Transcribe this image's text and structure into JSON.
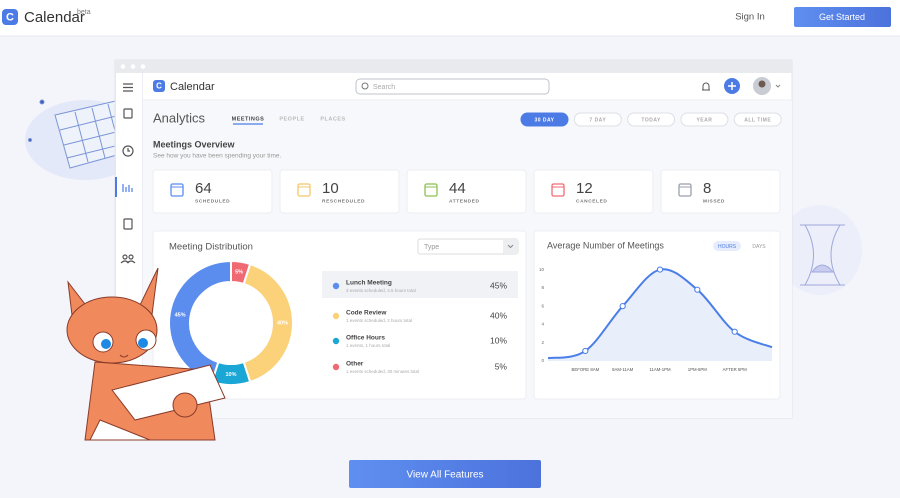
{
  "nav": {
    "logo": "Calendar",
    "badge": "beta",
    "sign_in": "Sign In",
    "cta": "Get Started"
  },
  "app": {
    "logo": "Calendar",
    "search": "Search",
    "title": "Analytics",
    "tabs": [
      "MEETINGS",
      "PEOPLE",
      "PLACES"
    ],
    "ranges": [
      "30 DAY",
      "7 DAY",
      "TODAY",
      "YEAR",
      "ALL TIME"
    ],
    "overview_title": "Meetings Overview",
    "overview_subtitle": "See how you have been spending your time.",
    "stats": [
      {
        "value": "64",
        "label": "SCHEDULED",
        "color": "#5b8def"
      },
      {
        "value": "10",
        "label": "RESCHEDULED",
        "color": "#f5c86a"
      },
      {
        "value": "44",
        "label": "ATTENDED",
        "color": "#8cc152"
      },
      {
        "value": "12",
        "label": "CANCELED",
        "color": "#f06a74"
      },
      {
        "value": "8",
        "label": "MISSED",
        "color": "#9aa0ab"
      }
    ],
    "type_select": "Type"
  },
  "chart_data": [
    {
      "type": "pie",
      "title": "Meeting Distribution",
      "categories": [
        "Lunch Meeting",
        "Code Review",
        "Office Hours",
        "Other"
      ],
      "details": [
        "3 events scheduled, 4.5 hours total",
        "1 events scheduled, 2 hours total",
        "1 events, 1 hours total",
        "1 events scheduled, 30 minutes total"
      ],
      "values": [
        45,
        40,
        10,
        5
      ],
      "value_labels": [
        "45%",
        "40%",
        "10%",
        "5%"
      ],
      "colors": [
        "#5b8def",
        "#fbd27a",
        "#1aa7d6",
        "#f06a74"
      ],
      "slice_order": [
        3,
        1,
        2,
        0
      ]
    },
    {
      "type": "line",
      "title": "Average Number of Meetings",
      "toggles": [
        "HOURS",
        "DAYS"
      ],
      "categories": [
        null,
        "BEFORE 8AM",
        "8AM-11AM",
        "11AM-1PM",
        "1PM-5PM",
        "AFTER 5PM",
        null
      ],
      "values": [
        0.3,
        1.1,
        6,
        10,
        7.8,
        3.2,
        1.5
      ],
      "color": "#4a7ee8",
      "ylim": [
        0,
        10.5
      ],
      "yticks": [
        0,
        2,
        4,
        6,
        8,
        10
      ]
    }
  ],
  "footer": {
    "button": "View All Features"
  }
}
